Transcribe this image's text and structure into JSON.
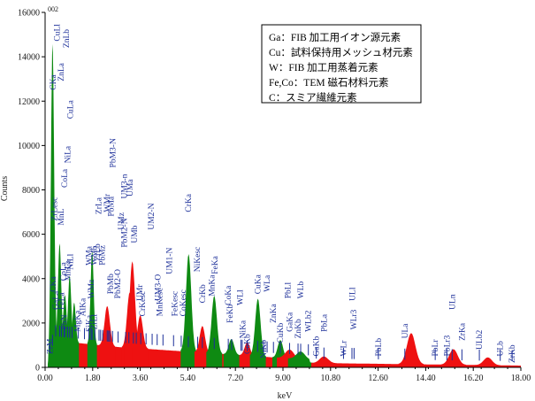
{
  "chart_data": {
    "type": "area",
    "tag": "002",
    "xlabel": "keV",
    "ylabel": "Counts",
    "xlim": [
      0,
      18
    ],
    "ylim": [
      0,
      16000
    ],
    "x_ticks": [
      "0.00",
      "1.80",
      "3.60",
      "5.40",
      "7.20",
      "9.00",
      "10.80",
      "12.60",
      "14.40",
      "16.20",
      "18.00"
    ],
    "y_ticks": [
      "0",
      "2000",
      "4000",
      "6000",
      "8000",
      "10000",
      "12000",
      "14000",
      "16000"
    ],
    "grid": false,
    "colors": {
      "red_series": "#ee1111",
      "green_series": "#0e8a12",
      "markers": "#1c2f99",
      "background": "#ffffff"
    },
    "legend_box": [
      "Ga：FIB 加工用イオン源元素",
      "Cu：試料保持用メッシュ材元素",
      "W：FIB 加工用蒸着元素",
      "Fe,Co：TEM 磁石材料元素",
      "C：スミア繊維元素"
    ],
    "peaks": [
      {
        "x": 0.28,
        "y": 13800,
        "color": "green"
      },
      {
        "x": 0.55,
        "y": 4400,
        "color": "green"
      },
      {
        "x": 0.75,
        "y": 2100,
        "color": "green"
      },
      {
        "x": 0.93,
        "y": 3000,
        "color": "green"
      },
      {
        "x": 1.1,
        "y": 1800,
        "color": "green"
      },
      {
        "x": 1.78,
        "y": 4200,
        "color": "green"
      },
      {
        "x": 2.35,
        "y": 1800,
        "color": "red"
      },
      {
        "x": 3.2,
        "y": 2500,
        "color": "red"
      },
      {
        "x": 3.3,
        "y": 3900,
        "color": "red"
      },
      {
        "x": 3.6,
        "y": 1500,
        "color": "red"
      },
      {
        "x": 5.43,
        "y": 4400,
        "color": "green"
      },
      {
        "x": 5.95,
        "y": 1200,
        "color": "red"
      },
      {
        "x": 6.4,
        "y": 2600,
        "color": "green"
      },
      {
        "x": 7.05,
        "y": 700,
        "color": "green"
      },
      {
        "x": 7.65,
        "y": 600,
        "color": "red"
      },
      {
        "x": 8.05,
        "y": 2600,
        "color": "green"
      },
      {
        "x": 8.9,
        "y": 800,
        "color": "green"
      },
      {
        "x": 9.25,
        "y": 400,
        "color": "red"
      },
      {
        "x": 9.67,
        "y": 350,
        "color": "green"
      },
      {
        "x": 10.55,
        "y": 300,
        "color": "red"
      },
      {
        "x": 13.85,
        "y": 1400,
        "color": "red"
      },
      {
        "x": 15.45,
        "y": 700,
        "color": "red"
      },
      {
        "x": 16.75,
        "y": 350,
        "color": "red"
      }
    ],
    "peak_labels": [
      {
        "text": "ZrM",
        "x": 0.18,
        "y": 600
      },
      {
        "text": "CKa",
        "x": 0.3,
        "y": 3400
      },
      {
        "text": "GaLa",
        "x": 0.4,
        "y": 2600
      },
      {
        "text": "FeLa",
        "x": 0.62,
        "y": 2600
      },
      {
        "text": "PbN",
        "x": 0.72,
        "y": 1700
      },
      {
        "text": "CoLa",
        "x": 0.68,
        "y": 3900
      },
      {
        "text": "MnLa",
        "x": 0.85,
        "y": 3900
      },
      {
        "text": "NiLl",
        "x": 0.95,
        "y": 4400
      },
      {
        "text": "ZrLesc",
        "x": 0.35,
        "y": 6600
      },
      {
        "text": "CKa",
        "x": 0.3,
        "y": 12500
      },
      {
        "text": "CuLl",
        "x": 0.45,
        "y": 14700
      },
      {
        "text": "ZnLa",
        "x": 0.6,
        "y": 12900
      },
      {
        "text": "ZnLb",
        "x": 0.8,
        "y": 14400
      },
      {
        "text": "CuLa",
        "x": 0.95,
        "y": 11200
      },
      {
        "text": "NiLa",
        "x": 0.86,
        "y": 9200
      },
      {
        "text": "CoLa",
        "x": 0.74,
        "y": 8100
      },
      {
        "text": "MnL",
        "x": 0.6,
        "y": 6400
      },
      {
        "text": "MgKa",
        "x": 1.22,
        "y": 1600
      },
      {
        "text": "AlKa",
        "x": 1.42,
        "y": 2300
      },
      {
        "text": "SiKa",
        "x": 1.66,
        "y": 1600
      },
      {
        "text": "WMz",
        "x": 1.74,
        "y": 3100
      },
      {
        "text": "ZrLl",
        "x": 1.86,
        "y": 1700
      },
      {
        "text": "WMa",
        "x": 1.66,
        "y": 4600
      },
      {
        "text": "WMb",
        "x": 1.86,
        "y": 4600
      },
      {
        "text": "ZrLb",
        "x": 1.98,
        "y": 4800
      },
      {
        "text": "ZrLa",
        "x": 2.03,
        "y": 6900
      },
      {
        "text": "PbMz",
        "x": 2.15,
        "y": 4600
      },
      {
        "text": "WMr",
        "x": 2.35,
        "y": 7000
      },
      {
        "text": "PbMb",
        "x": 2.47,
        "y": 3300
      },
      {
        "text": "PbM3-N",
        "x": 2.56,
        "y": 9000
      },
      {
        "text": "PbMa",
        "x": 2.5,
        "y": 6800
      },
      {
        "text": "UMz",
        "x": 2.88,
        "y": 6200
      },
      {
        "text": "UM3-n",
        "x": 3.0,
        "y": 7600
      },
      {
        "text": "PbM2-O",
        "x": 2.75,
        "y": 3100
      },
      {
        "text": "PbM2-N",
        "x": 3.0,
        "y": 5400
      },
      {
        "text": "UMa",
        "x": 3.22,
        "y": 7700
      },
      {
        "text": "UMb",
        "x": 3.38,
        "y": 5600
      },
      {
        "text": "UMr",
        "x": 3.58,
        "y": 3000
      },
      {
        "text": "CrKesc",
        "x": 3.68,
        "y": 2300
      },
      {
        "text": "UM2-N",
        "x": 4.02,
        "y": 6200
      },
      {
        "text": "UM3-O",
        "x": 4.26,
        "y": 3000
      },
      {
        "text": "UM1-N",
        "x": 4.7,
        "y": 4200
      },
      {
        "text": "MnKesc",
        "x": 4.34,
        "y": 2300
      },
      {
        "text": "FeKesc",
        "x": 4.9,
        "y": 2300
      },
      {
        "text": "CoKesc",
        "x": 5.22,
        "y": 2300
      },
      {
        "text": "CrKa",
        "x": 5.42,
        "y": 7000
      },
      {
        "text": "NiKesc",
        "x": 5.75,
        "y": 4300
      },
      {
        "text": "CrKb",
        "x": 5.95,
        "y": 2900
      },
      {
        "text": "MnKa",
        "x": 6.3,
        "y": 3200
      },
      {
        "text": "FeKa",
        "x": 6.42,
        "y": 4200
      },
      {
        "text": "FeKb",
        "x": 6.99,
        "y": 2000
      },
      {
        "text": "CoKa",
        "x": 6.93,
        "y": 2800
      },
      {
        "text": "NiKa",
        "x": 7.48,
        "y": 1300
      },
      {
        "text": "WLl",
        "x": 7.38,
        "y": 2800
      },
      {
        "text": "CoKb",
        "x": 7.65,
        "y": 600
      },
      {
        "text": "NiKb",
        "x": 8.26,
        "y": 400
      },
      {
        "text": "CuKa",
        "x": 8.04,
        "y": 3300
      },
      {
        "text": "WLa",
        "x": 8.4,
        "y": 3400
      },
      {
        "text": "ZnKa",
        "x": 8.64,
        "y": 2000
      },
      {
        "text": "CuKb",
        "x": 8.9,
        "y": 1100
      },
      {
        "text": "ZnKb",
        "x": 9.57,
        "y": 1300
      },
      {
        "text": "GaKa",
        "x": 9.25,
        "y": 1600
      },
      {
        "text": "PbLl",
        "x": 9.18,
        "y": 3100
      },
      {
        "text": "WLb",
        "x": 9.67,
        "y": 3100
      },
      {
        "text": "WLb2",
        "x": 9.96,
        "y": 1600
      },
      {
        "text": "GaKb",
        "x": 10.26,
        "y": 500
      },
      {
        "text": "PbLa",
        "x": 10.55,
        "y": 1600
      },
      {
        "text": "WLr",
        "x": 11.29,
        "y": 500
      },
      {
        "text": "WLr3",
        "x": 11.68,
        "y": 1700
      },
      {
        "text": "ULl",
        "x": 11.62,
        "y": 3000
      },
      {
        "text": "PbLb",
        "x": 12.61,
        "y": 500
      },
      {
        "text": "ULa",
        "x": 13.61,
        "y": 1300
      },
      {
        "text": "PbLr",
        "x": 14.76,
        "y": 500
      },
      {
        "text": "PbLr3",
        "x": 15.21,
        "y": 500
      },
      {
        "text": "ULn",
        "x": 15.4,
        "y": 2600
      },
      {
        "text": "ZrKa",
        "x": 15.77,
        "y": 1200
      },
      {
        "text": "ULb2",
        "x": 16.43,
        "y": 800
      },
      {
        "text": "ULb",
        "x": 17.22,
        "y": 500
      },
      {
        "text": "ZrKb",
        "x": 17.67,
        "y": 200
      }
    ],
    "marker_positions": [
      0.18,
      0.28,
      0.4,
      0.55,
      0.62,
      0.72,
      0.74,
      0.85,
      0.93,
      1.02,
      1.25,
      1.49,
      1.66,
      1.74,
      1.78,
      1.88,
      2.04,
      2.1,
      2.18,
      2.35,
      2.4,
      2.45,
      2.55,
      2.76,
      3.05,
      3.17,
      3.34,
      3.45,
      3.62,
      3.82,
      4.05,
      4.24,
      4.46,
      4.86,
      5.15,
      5.42,
      5.77,
      5.95,
      6.4,
      6.93,
      7.06,
      7.41,
      7.46,
      7.65,
      8.04,
      8.27,
      8.4,
      8.64,
      8.9,
      9.25,
      9.57,
      9.67,
      9.96,
      10.26,
      10.55,
      11.29,
      11.61,
      11.69,
      12.61,
      13.61,
      14.76,
      15.2,
      15.4,
      15.77,
      16.43,
      17.22,
      17.67
    ]
  }
}
